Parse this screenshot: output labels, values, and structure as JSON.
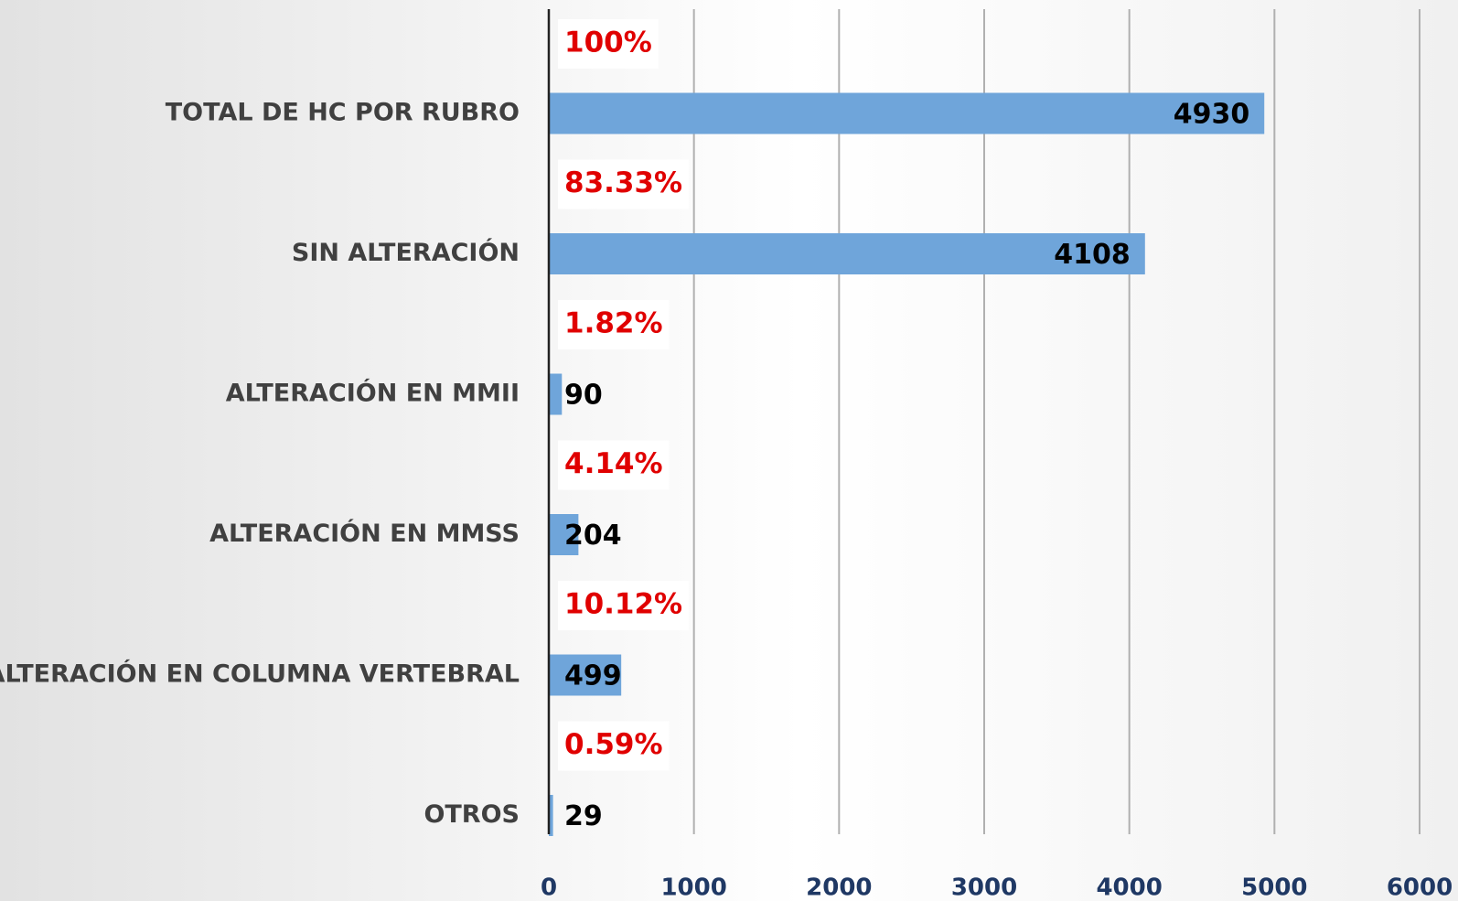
{
  "chart_data": {
    "type": "bar",
    "orientation": "horizontal",
    "categories": [
      "TOTAL DE HC POR RUBRO",
      "SIN ALTERACIÓN",
      "ALTERACIÓN EN MMII",
      "ALTERACIÓN EN MMSS",
      "ALTERACIÓN EN COLUMNA VERTEBRAL",
      "OTROS"
    ],
    "values": [
      4930,
      4108,
      90,
      204,
      499,
      29
    ],
    "percent_labels": [
      "100%",
      "83.33%",
      "1.82%",
      "4.14%",
      "10.12%",
      "0.59%"
    ],
    "color": "#6fa5da",
    "xlim": [
      0,
      6000
    ],
    "xticks": [
      0,
      1000,
      2000,
      3000,
      4000,
      5000,
      6000
    ],
    "grid": true
  }
}
